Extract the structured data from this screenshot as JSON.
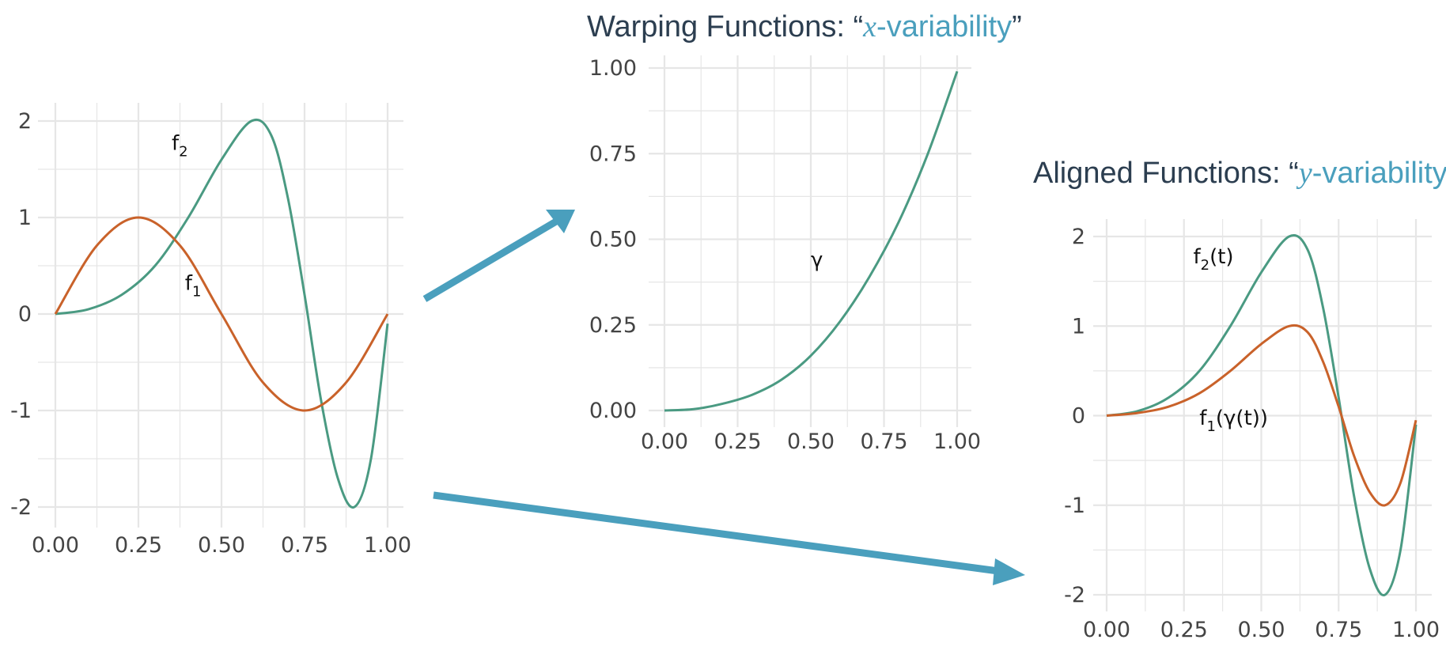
{
  "titles": {
    "warping_prefix": "Warping Functions: “",
    "warping_var": "x",
    "warping_suffix": "-variability",
    "warping_close": "”",
    "aligned_prefix": "Aligned Functions: “",
    "aligned_var": "y",
    "aligned_suffix": "-variability",
    "aligned_close": "”"
  },
  "colors": {
    "teal": "#4a9a82",
    "orange": "#c9622a",
    "arrow": "#4a9fbd",
    "grid": "#e6e6e6",
    "title": "#2c3e50"
  },
  "chart_data": [
    {
      "type": "line",
      "xlim": [
        0,
        1
      ],
      "ylim": [
        -2,
        2
      ],
      "x_ticks": [
        "0.00",
        "0.25",
        "0.50",
        "0.75",
        "1.00"
      ],
      "y_ticks": [
        "2",
        "1",
        "0",
        "-1",
        "-2"
      ],
      "grid": true,
      "series": [
        {
          "name": "f2",
          "color": "#4a9a82",
          "x": [
            0,
            0.1,
            0.2,
            0.3,
            0.4,
            0.5,
            0.59,
            0.65,
            0.7,
            0.75,
            0.8,
            0.85,
            0.9,
            0.95,
            1.0
          ],
          "y": [
            0,
            0.05,
            0.2,
            0.5,
            1.0,
            1.6,
            2.0,
            1.85,
            1.2,
            0.2,
            -0.9,
            -1.7,
            -2.0,
            -1.5,
            -0.1
          ]
        },
        {
          "name": "f1",
          "color": "#c9622a",
          "x": [
            0,
            0.125,
            0.25,
            0.375,
            0.5,
            0.625,
            0.75,
            0.875,
            1.0
          ],
          "y": [
            0,
            0.71,
            1.0,
            0.71,
            0,
            -0.71,
            -1.0,
            -0.71,
            0
          ]
        }
      ],
      "labels": [
        {
          "text": "f",
          "sub": "2",
          "x": 0.35,
          "y": 1.7
        },
        {
          "text": "f",
          "sub": "1",
          "x": 0.39,
          "y": 0.25
        }
      ]
    },
    {
      "type": "line",
      "xlim": [
        0,
        1
      ],
      "ylim": [
        0,
        1
      ],
      "x_ticks": [
        "0.00",
        "0.25",
        "0.50",
        "0.75",
        "1.00"
      ],
      "y_ticks": [
        "1.00",
        "0.75",
        "0.50",
        "0.25",
        "0.00"
      ],
      "grid": true,
      "series": [
        {
          "name": "γ",
          "color": "#4a9a82",
          "x": [
            0,
            0.1,
            0.2,
            0.3,
            0.4,
            0.5,
            0.6,
            0.7,
            0.8,
            0.9,
            1.0
          ],
          "y": [
            0,
            0.004,
            0.02,
            0.046,
            0.09,
            0.16,
            0.26,
            0.39,
            0.55,
            0.75,
            0.99
          ]
        }
      ],
      "labels": [
        {
          "text": "γ",
          "sub": "",
          "x": 0.5,
          "y": 0.42
        }
      ]
    },
    {
      "type": "line",
      "xlim": [
        0,
        1
      ],
      "ylim": [
        -2,
        2
      ],
      "x_ticks": [
        "0.00",
        "0.25",
        "0.50",
        "0.75",
        "1.00"
      ],
      "y_ticks": [
        "2",
        "1",
        "0",
        "-1",
        "-2"
      ],
      "grid": true,
      "series": [
        {
          "name": "f2(t)",
          "color": "#4a9a82",
          "x": [
            0,
            0.1,
            0.2,
            0.3,
            0.4,
            0.5,
            0.59,
            0.65,
            0.7,
            0.75,
            0.8,
            0.85,
            0.9,
            0.95,
            1.0
          ],
          "y": [
            0,
            0.05,
            0.2,
            0.5,
            1.0,
            1.6,
            2.0,
            1.85,
            1.2,
            0.2,
            -0.9,
            -1.7,
            -2.0,
            -1.5,
            -0.1
          ]
        },
        {
          "name": "f1(γ(t))",
          "color": "#c9622a",
          "x": [
            0,
            0.1,
            0.2,
            0.3,
            0.4,
            0.5,
            0.59,
            0.65,
            0.7,
            0.75,
            0.8,
            0.85,
            0.9,
            0.95,
            1.0
          ],
          "y": [
            0,
            0.03,
            0.1,
            0.25,
            0.5,
            0.8,
            1.0,
            0.93,
            0.6,
            0.1,
            -0.45,
            -0.85,
            -1.0,
            -0.75,
            -0.05
          ]
        }
      ],
      "labels": [
        {
          "text": "f",
          "sub": "2",
          "tail": "(t)",
          "x": 0.28,
          "y": 1.7
        },
        {
          "text": "f",
          "sub": "1",
          "tail": "(γ(t))",
          "x": 0.3,
          "y": -0.1
        }
      ]
    }
  ]
}
